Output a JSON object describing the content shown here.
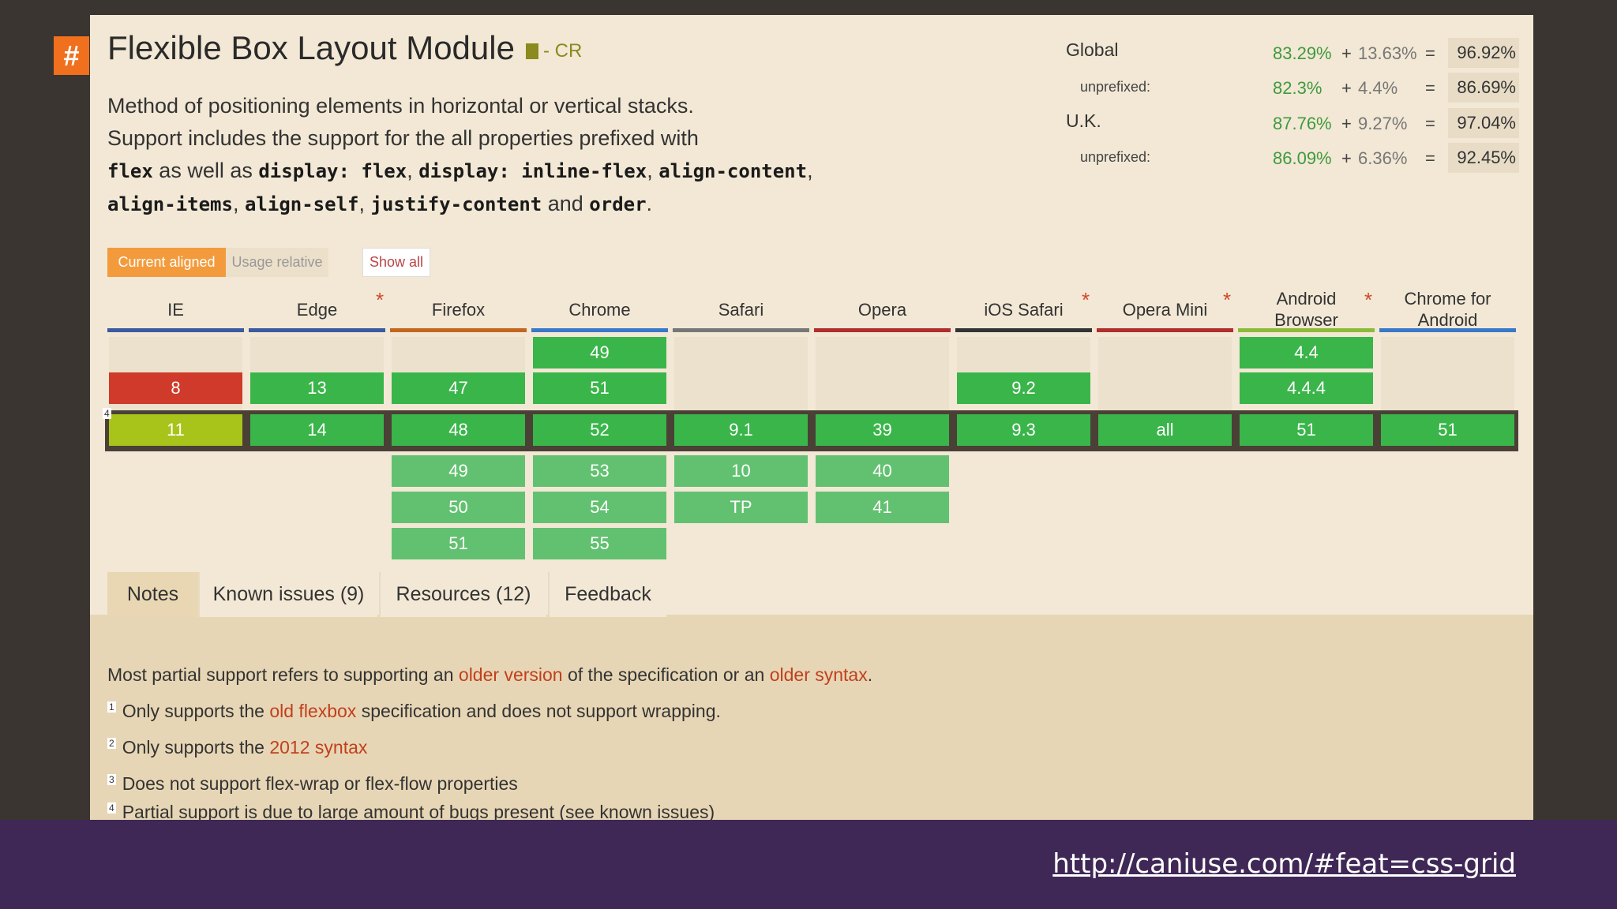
{
  "hash_symbol": "#",
  "title": "Flexible Box Layout Module",
  "spec_status": "- CR",
  "description": {
    "line1": "Method of positioning elements in horizontal or vertical stacks.",
    "line2a": "Support includes the support for the all properties prefixed with",
    "c_flex": "flex",
    "t_as_well_as": " as well as ",
    "c_display_flex": "display: flex",
    "t_comma1": ", ",
    "c_display_inline_flex": "display: inline-flex",
    "t_comma2": ", ",
    "c_align_content": "align-content",
    "t_comma3": ", ",
    "c_align_items": "align-items",
    "t_comma4": ", ",
    "c_align_self": "align-self",
    "t_comma5": ", ",
    "c_justify_content": "justify-content",
    "t_and": " and ",
    "c_order": "order",
    "t_period": "."
  },
  "stats": {
    "global": {
      "label": "Global",
      "supported": "83.29%",
      "plus": "+",
      "partial": "13.63%",
      "eq": "=",
      "total": "96.92%"
    },
    "global_unprefixed": {
      "label": "unprefixed:",
      "supported": "82.3%",
      "plus": "+",
      "partial": "4.4%",
      "eq": "=",
      "total": "86.69%"
    },
    "uk": {
      "label": "U.K.",
      "supported": "87.76%",
      "plus": "+",
      "partial": "9.27%",
      "eq": "=",
      "total": "97.04%"
    },
    "uk_unprefixed": {
      "label": "unprefixed:",
      "supported": "86.09%",
      "plus": "+",
      "partial": "6.36%",
      "eq": "=",
      "total": "92.45%"
    }
  },
  "buttons": {
    "current": "Current aligned",
    "relative": "Usage relative",
    "show_all": "Show all"
  },
  "star": "*",
  "browsers": {
    "ie": "IE",
    "edge": "Edge",
    "firefox": "Firefox",
    "chrome": "Chrome",
    "safari": "Safari",
    "opera": "Opera",
    "ios_safari": "iOS Safari",
    "opera_mini": "Opera Mini",
    "android_l1": "Android",
    "android_l2": "Browser",
    "chrome_android_l1": "Chrome for",
    "chrome_android_l2": "Android"
  },
  "bar_colors": {
    "ie": "#3b5aa0",
    "edge": "#3b5aa0",
    "firefox": "#c4661f",
    "chrome": "#3a78c9",
    "safari": "#777777",
    "opera": "#b22e2e",
    "ios_safari": "#333333",
    "opera_mini": "#b22e2e",
    "android": "#8cbb3a",
    "chrome_android": "#3a78c9"
  },
  "versions": {
    "row1": {
      "chrome": "49",
      "android": "4.4"
    },
    "row2": {
      "ie": "8",
      "edge": "13",
      "firefox": "47",
      "chrome": "51",
      "ios_safari": "9.2",
      "android": "4.4.4"
    },
    "current": {
      "ie": "11",
      "ie_note": "4",
      "edge": "14",
      "firefox": "48",
      "chrome": "52",
      "safari": "9.1",
      "opera": "39",
      "ios_safari": "9.3",
      "opera_mini": "all",
      "android": "51",
      "chrome_android": "51"
    },
    "future1": {
      "firefox": "49",
      "chrome": "53",
      "safari": "10",
      "opera": "40"
    },
    "future2": {
      "firefox": "50",
      "chrome": "54",
      "safari": "TP",
      "opera": "41"
    },
    "future3": {
      "firefox": "51",
      "chrome": "55"
    }
  },
  "tabs": {
    "notes": "Notes",
    "known_issues": "Known issues (9)",
    "resources": "Resources (12)",
    "feedback": "Feedback"
  },
  "notes": {
    "main_a": "Most partial support refers to supporting an ",
    "main_link1": "older version",
    "main_b": " of the specification or an ",
    "main_link2": "older syntax",
    "main_c": ".",
    "n1_num": "1",
    "n1_a": "Only supports the ",
    "n1_link": "old flexbox",
    "n1_b": " specification and does not support wrapping.",
    "n2_num": "2",
    "n2_a": "Only supports the ",
    "n2_link": "2012 syntax",
    "n3_num": "3",
    "n3_text": "Does not support flex-wrap or flex-flow properties",
    "n4_num": "4",
    "n4_text": "Partial support is due to large amount of bugs present (see known issues)"
  },
  "footer_url": "http://caniuse.com/#feat=css-grid"
}
